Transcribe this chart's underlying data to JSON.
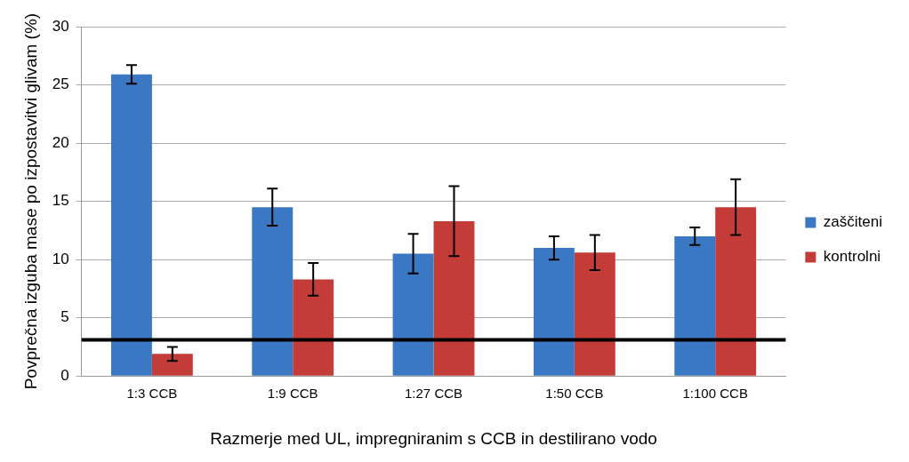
{
  "chart_data": {
    "type": "bar",
    "xlabel": "Razmerje med UL, impregniranim s CCB in destilirano vodo",
    "ylabel": "Povprečna izguba mase po izpostavitvi glivam (%)",
    "categories": [
      "1:3 CCB",
      "1:9 CCB",
      "1:27 CCB",
      "1:50 CCB",
      "1:100 CCB"
    ],
    "series": [
      {
        "name": "zaščiteni",
        "color": "#3a78c3",
        "values": [
          25.9,
          14.5,
          10.5,
          11.0,
          12.0
        ],
        "errors": [
          0.8,
          1.6,
          1.7,
          1.0,
          0.75
        ]
      },
      {
        "name": "kontrolni",
        "color": "#c43c38",
        "values": [
          1.9,
          8.3,
          13.3,
          10.6,
          14.5
        ],
        "errors": [
          0.6,
          1.4,
          3.0,
          1.5,
          2.4
        ]
      }
    ],
    "ylim": [
      0,
      30
    ],
    "yticks": [
      0,
      5,
      10,
      15,
      20,
      25,
      30
    ],
    "grid": "y",
    "legend": "right",
    "ref_lines": [
      {
        "axis": "y",
        "value": 3.1,
        "color": "#000000"
      }
    ]
  }
}
